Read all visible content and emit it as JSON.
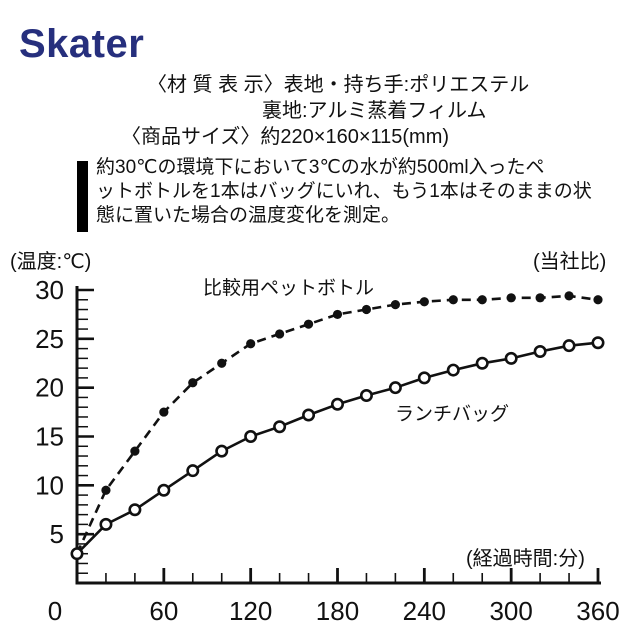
{
  "brand": {
    "logo": "Skater",
    "logo_color": "#262f7d"
  },
  "product_info": {
    "line1": "〈材 質 表 示〉表地・持ち手:ポリエステル",
    "line2": "裏地:アルミ蒸着フィルム",
    "line3": "〈商品サイズ〉約220×160×115(mm)"
  },
  "test_description": {
    "lines": [
      "約30℃の環境下において3℃の水が約500ml入ったペ",
      "ットボトルを1本はバッグにいれ、もう1本はそのままの状",
      "態に置いた場合の温度変化を測定。"
    ]
  },
  "chart_data": {
    "type": "line",
    "title": "",
    "ylabel": "(温度:℃)",
    "xlabel": "(経過時間:分)",
    "note": "(当社比)",
    "x": [
      0,
      20,
      40,
      60,
      80,
      100,
      120,
      140,
      160,
      180,
      200,
      220,
      240,
      260,
      280,
      300,
      320,
      340,
      360
    ],
    "series": [
      {
        "name": "比較用ペットボトル",
        "style": "dashed",
        "marker": "filled-circle",
        "start_marker": false,
        "values": [
          3,
          9.5,
          13.5,
          17.5,
          20.5,
          22.5,
          24.5,
          25.5,
          26.5,
          27.5,
          28,
          28.5,
          28.8,
          29,
          29,
          29.2,
          29.2,
          29.4,
          29
        ]
      },
      {
        "name": "ランチバッグ",
        "style": "solid",
        "marker": "open-circle",
        "start_marker": true,
        "values": [
          3,
          6,
          7.5,
          9.5,
          11.5,
          13.5,
          15,
          16,
          17.2,
          18.3,
          19.2,
          20,
          21,
          21.8,
          22.5,
          23,
          23.7,
          24.3,
          24.6
        ]
      }
    ],
    "xlim": [
      0,
      360
    ],
    "ylim": [
      0,
      30
    ],
    "x_ticks_labeled": [
      0,
      60,
      120,
      180,
      240,
      300,
      360
    ],
    "x_minor_step": 20,
    "y_ticks_labeled": [
      5,
      10,
      15,
      20,
      25,
      30
    ],
    "y_minor_step": 1,
    "grid": false,
    "line_color": "#111111",
    "legend_position": "inline-labels"
  }
}
